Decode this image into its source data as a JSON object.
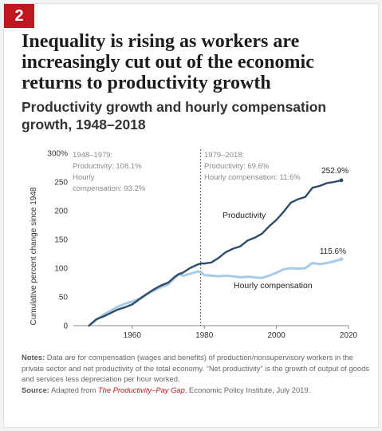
{
  "figure": {
    "number": "2",
    "title": "Inequality is rising as workers are increasingly cut out of the economic returns to productivity growth",
    "subtitle": "Productivity growth and hourly compensation growth, 1948–2018",
    "notes_label": "Notes:",
    "notes_text": "Data are for compensation (wages and benefits) of production/nonsupervisory workers in the private sector and net productivity of the total economy. “Net productivity” is the growth of output of goods and services less depreciation per hour worked.",
    "source_label": "Source:",
    "source_pre": "Adapted from",
    "source_title": "The Productivity–Pay Gap",
    "source_post": ", Economic Policy Institute, July 2019."
  },
  "colors": {
    "badge": "#c0161f",
    "productivity": "#2e4d6b",
    "compensation": "#a9cbe6",
    "text": "#333333",
    "axis": "#888888",
    "divider": "#555555"
  },
  "chart_data": {
    "type": "line",
    "title": "Productivity growth and hourly compensation growth, 1948–2018",
    "xlabel": "",
    "ylabel": "Cumulative percent change since 1948",
    "xlim": [
      1948,
      2018
    ],
    "ylim": [
      0,
      300
    ],
    "x_ticks": [
      "1960",
      "1980",
      "2000",
      "2020"
    ],
    "x_tick_values": [
      1960,
      1980,
      2000,
      2020
    ],
    "y_ticks": [
      "0",
      "50",
      "100",
      "150",
      "200",
      "250",
      "300%"
    ],
    "y_tick_values": [
      0,
      50,
      100,
      150,
      200,
      250,
      300
    ],
    "divider_year": 1979,
    "series": [
      {
        "name": "Productivity",
        "end_label": "252.9%",
        "x": [
          1948,
          1950,
          1952,
          1954,
          1956,
          1958,
          1960,
          1962,
          1964,
          1966,
          1968,
          1970,
          1972,
          1973,
          1974,
          1976,
          1978,
          1979,
          1980,
          1982,
          1984,
          1986,
          1988,
          1990,
          1992,
          1994,
          1996,
          1998,
          2000,
          2002,
          2004,
          2006,
          2008,
          2010,
          2012,
          2014,
          2016,
          2018
        ],
        "values": [
          0,
          11,
          16,
          22,
          28,
          32,
          37,
          46,
          55,
          63,
          70,
          75,
          86,
          90,
          92,
          100,
          106,
          108.1,
          108,
          110,
          118,
          128,
          134,
          138,
          148,
          153,
          160,
          173,
          184,
          198,
          214,
          220,
          224,
          240,
          243,
          248,
          250,
          252.9
        ]
      },
      {
        "name": "Hourly compensation",
        "end_label": "115.6%",
        "x": [
          1948,
          1950,
          1952,
          1954,
          1956,
          1958,
          1960,
          1962,
          1964,
          1966,
          1968,
          1970,
          1972,
          1973,
          1974,
          1976,
          1978,
          1979,
          1980,
          1982,
          1984,
          1986,
          1988,
          1990,
          1992,
          1994,
          1996,
          1998,
          2000,
          2002,
          2004,
          2006,
          2008,
          2010,
          2012,
          2014,
          2016,
          2018
        ],
        "values": [
          0,
          10,
          19,
          26,
          33,
          38,
          42,
          47,
          54,
          61,
          67,
          72,
          84,
          90,
          87,
          90,
          94,
          93.2,
          88,
          87,
          86,
          87,
          86,
          84,
          85,
          84,
          83,
          87,
          92,
          98,
          100,
          99,
          100,
          109,
          107,
          109,
          112,
          115.6
        ]
      }
    ],
    "annotations": [
      {
        "period": "1948–1979:",
        "line1": "Productivity: 108.1%",
        "line2": "Hourly",
        "line3": "compensation: 93.2%"
      },
      {
        "period": "1979–2018:",
        "line1": "Productivity: 69.6%",
        "line2": "Hourly compensation: 11.6%"
      }
    ],
    "grid": false,
    "legend": "inline labels"
  }
}
